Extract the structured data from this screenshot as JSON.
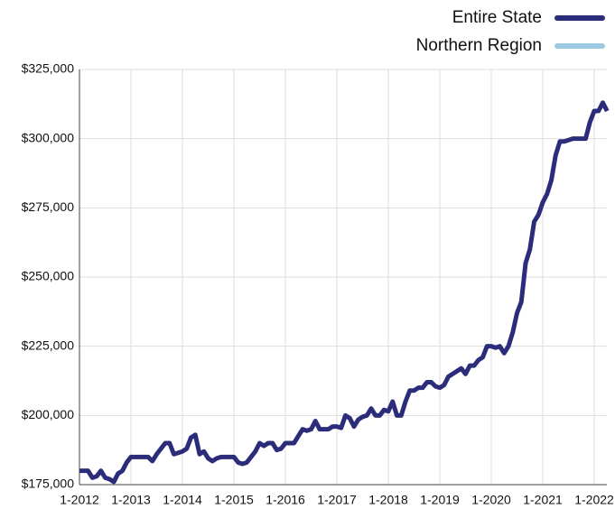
{
  "chart_data": {
    "type": "line",
    "categories": [
      "1-2012",
      null,
      null,
      null,
      null,
      null,
      null,
      null,
      null,
      null,
      null,
      null,
      "1-2013",
      null,
      null,
      null,
      null,
      null,
      null,
      null,
      null,
      null,
      null,
      null,
      "1-2014",
      null,
      null,
      null,
      null,
      null,
      null,
      null,
      null,
      null,
      null,
      null,
      "1-2015",
      null,
      null,
      null,
      null,
      null,
      null,
      null,
      null,
      null,
      null,
      null,
      "1-2016",
      null,
      null,
      null,
      null,
      null,
      null,
      null,
      null,
      null,
      null,
      null,
      "1-2017",
      null,
      null,
      null,
      null,
      null,
      null,
      null,
      null,
      null,
      null,
      null,
      "1-2018",
      null,
      null,
      null,
      null,
      null,
      null,
      null,
      null,
      null,
      null,
      null,
      "1-2019",
      null,
      null,
      null,
      null,
      null,
      null,
      null,
      null,
      null,
      null,
      null,
      "1-2020",
      null,
      null,
      null,
      null,
      null,
      null,
      null,
      null,
      null,
      null,
      null,
      "1-2021",
      null,
      null,
      null,
      null,
      null,
      null,
      null,
      null,
      null,
      null,
      null,
      "1-2022",
      null,
      null,
      null
    ],
    "series": [
      {
        "name": "Entire State",
        "color": "#2b2d7a",
        "values": [
          180000,
          180000,
          180000,
          177500,
          178000,
          180000,
          177500,
          177000,
          176000,
          179000,
          180000,
          183000,
          185000,
          185000,
          185000,
          185000,
          185000,
          183500,
          186000,
          188000,
          190000,
          190000,
          186000,
          186500,
          187000,
          188000,
          192000,
          193000,
          186000,
          187000,
          184500,
          183500,
          184500,
          185000,
          185000,
          185000,
          185000,
          183000,
          182500,
          183000,
          185000,
          187000,
          190000,
          189000,
          190000,
          190000,
          187500,
          188000,
          190000,
          190000,
          190000,
          192500,
          195000,
          194500,
          195000,
          198000,
          195000,
          195000,
          195000,
          196000,
          196000,
          195500,
          200000,
          199000,
          196000,
          198500,
          199500,
          200000,
          202500,
          200000,
          200000,
          202000,
          201500,
          205000,
          200000,
          200000,
          205000,
          209000,
          209000,
          210000,
          210000,
          212000,
          212000,
          210500,
          210000,
          211000,
          214000,
          215000,
          216000,
          217000,
          215000,
          218000,
          218000,
          220000,
          221000,
          225000,
          225000,
          224500,
          225000,
          222500,
          225000,
          230000,
          237000,
          241000,
          255000,
          260000,
          270000,
          272500,
          277000,
          280000,
          285000,
          294000,
          299000,
          299000,
          299500,
          300000,
          300000,
          300000,
          300000,
          306000,
          310000,
          310000,
          313000,
          310000
        ]
      },
      {
        "name": "Northern Region",
        "color": "#9ecae1",
        "values": [
          null,
          null,
          null,
          null,
          null,
          null,
          null,
          null,
          null,
          null,
          null,
          null,
          null,
          null,
          null,
          null,
          null,
          null,
          null,
          null,
          null,
          null,
          null,
          null,
          null,
          null,
          null,
          null,
          null,
          null,
          null,
          null,
          null,
          null,
          null,
          null,
          null,
          null,
          null,
          null,
          null,
          null,
          null,
          null,
          null,
          null,
          null,
          null,
          null,
          null,
          null,
          null,
          null,
          null,
          null,
          null,
          null,
          null,
          null,
          null,
          null,
          null,
          null,
          null,
          null,
          null,
          null,
          null,
          null,
          null,
          null,
          null,
          null,
          null,
          null,
          null,
          null,
          null,
          null,
          null,
          null,
          null,
          null,
          null,
          null,
          null,
          null,
          null,
          null,
          null,
          null,
          null,
          null,
          null,
          null,
          null,
          null,
          null,
          null,
          null,
          null,
          null,
          null,
          null,
          null,
          null,
          null,
          null,
          null,
          null,
          null,
          null,
          null,
          null,
          null,
          null,
          null,
          null,
          null,
          null,
          null,
          null,
          null,
          null
        ]
      }
    ],
    "ylim": [
      175000,
      325000
    ],
    "yticks": [
      {
        "value": 175000,
        "label": "$175,000"
      },
      {
        "value": 200000,
        "label": "$200,000"
      },
      {
        "value": 225000,
        "label": "$225,000"
      },
      {
        "value": 250000,
        "label": "$250,000"
      },
      {
        "value": 275000,
        "label": "$275,000"
      },
      {
        "value": 300000,
        "label": "$300,000"
      },
      {
        "value": 325000,
        "label": "$325,000"
      }
    ],
    "grid": true,
    "legend": "top-right"
  }
}
